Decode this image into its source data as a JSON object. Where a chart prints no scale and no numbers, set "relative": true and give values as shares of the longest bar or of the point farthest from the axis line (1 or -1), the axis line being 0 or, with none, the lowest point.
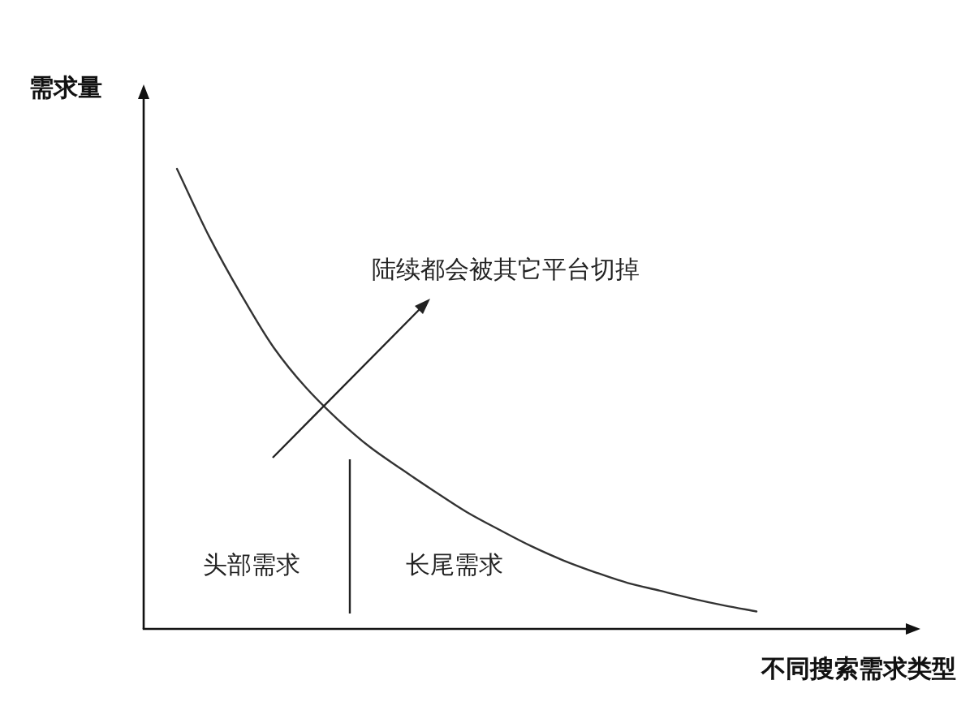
{
  "chart_data": {
    "type": "line",
    "relative": true,
    "categories": [
      null,
      null,
      null,
      null,
      null,
      null,
      null,
      null,
      null,
      null,
      null,
      null,
      null,
      null,
      null,
      null,
      null,
      null,
      null
    ],
    "series": [
      {
        "color": "#333333",
        "values": [
          1.0,
          0.853,
          0.726,
          0.612,
          0.525,
          0.455,
          0.395,
          0.346,
          0.299,
          0.254,
          0.216,
          0.18,
          0.149,
          0.123,
          0.1,
          0.083,
          0.066,
          0.051,
          0.038
        ]
      }
    ],
    "xlabel": "不同搜索需求类型",
    "ylabel": "需求量",
    "annotations": [
      "陆续都会被其它平台切掉",
      "头部需求",
      "长尾需求"
    ]
  }
}
